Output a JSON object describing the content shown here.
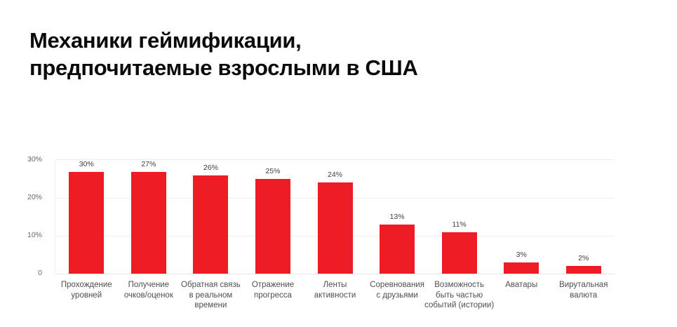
{
  "title": {
    "line1": "Механики геймификации,",
    "line2": "предпочитаемые взрослыми в США"
  },
  "chart_data": {
    "type": "bar",
    "title": "Механики геймификации, предпочитаемые взрослыми в США",
    "categories": [
      "Прохождение уровней",
      "Получение очков/оценок",
      "Обратная связь в реальном времени",
      "Отражение прогресса",
      "Ленты активности",
      "Соревнования с друзьями",
      "Возможность быть частью событий (истории)",
      "Аватары",
      "Вирутальная валюта"
    ],
    "category_lines": [
      [
        "Прохождение",
        "уровней"
      ],
      [
        "Получение",
        "очков/оценок"
      ],
      [
        "Обратная связь",
        "в реальном",
        "времени"
      ],
      [
        "Отражение",
        "прогресса"
      ],
      [
        "Ленты",
        "активности"
      ],
      [
        "Соревнования",
        "с друзьями"
      ],
      [
        "Возможность",
        "быть частью",
        "событий (истории)"
      ],
      [
        "Аватары"
      ],
      [
        "Вирутальная",
        "валюта"
      ]
    ],
    "values": [
      30,
      27,
      26,
      25,
      24,
      13,
      11,
      3,
      2
    ],
    "value_labels": [
      "30%",
      "27%",
      "26%",
      "25%",
      "24%",
      "13%",
      "11%",
      "3%",
      "2%"
    ],
    "xlabel": "",
    "ylabel": "",
    "ylim": [
      0,
      30
    ],
    "yticks": [
      {
        "value": 30,
        "label": "30%"
      },
      {
        "value": 20,
        "label": "20%"
      },
      {
        "value": 10,
        "label": "10%"
      },
      {
        "value": 0,
        "label": "0"
      }
    ],
    "grid": true,
    "legend": false,
    "bar_color": "#ee1c24"
  },
  "colors": {
    "background": "#ffffff",
    "title": "#0a0a0a",
    "bar": "#ee1c24",
    "gridline": "#efefef",
    "axis_tick_label": "#666666",
    "value_label": "#3f3f3f",
    "category_label": "#4f4f4f"
  }
}
